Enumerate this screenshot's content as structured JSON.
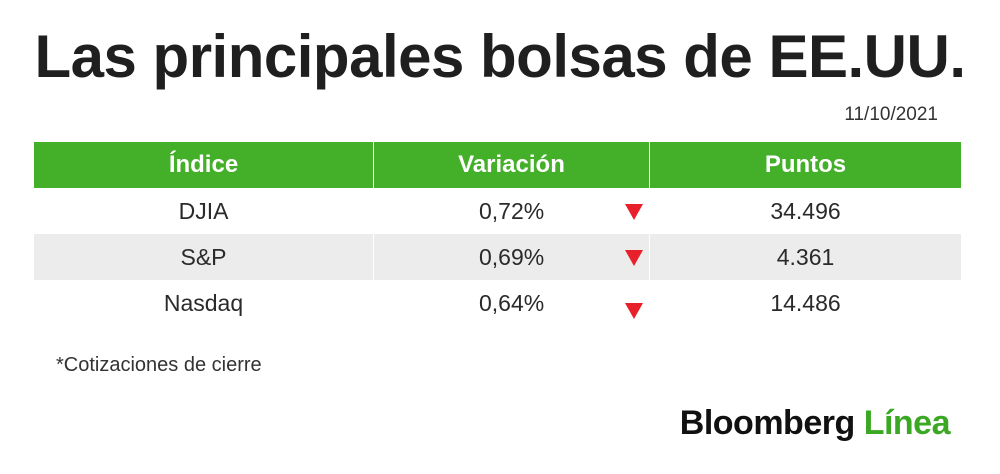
{
  "title": "Las principales bolsas de EE.UU.",
  "date": "11/10/2021",
  "table": {
    "headers": [
      "Índice",
      "Variación",
      "Puntos"
    ],
    "rows": [
      {
        "index": "DJIA",
        "change": "0,72%",
        "points": "34.496",
        "direction": "down"
      },
      {
        "index": "S&P",
        "change": "0,69%",
        "points": "4.361",
        "direction": "down"
      },
      {
        "index": "Nasdaq",
        "change": "0,64%",
        "points": "14.486",
        "direction": "down"
      }
    ]
  },
  "note": "*Cotizaciones de cierre",
  "logo": {
    "part1": "Bloomberg",
    "part2": "Línea"
  },
  "colors": {
    "header_green": "#44b029",
    "down_red": "#e8202a",
    "logo_green": "#3aa823",
    "alt_row": "#ececec"
  }
}
